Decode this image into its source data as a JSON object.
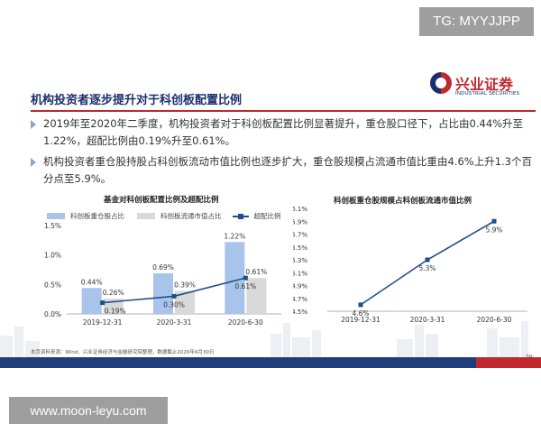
{
  "watermarks": {
    "top": "TG: MYYJJPP",
    "bottom": "www.moon-leyu.com"
  },
  "logo": {
    "name": "兴业证券",
    "sub": "INDUSTRIAL SECURITIES"
  },
  "slide_title": "机构投资者逐步提升对于科创板配置比例",
  "bullets": [
    "2019年至2020年二季度，机构投资者对于科创板配置比例显著提升，重仓股口径下，占比由0.44%升至1.22%，超配比例由0.19%升至0.61%。",
    "机构投资者重仓股持股占科创板流动市值比例也逐步扩大，重仓股规模占流通市值比重由4.6%上升1.3个百分点至5.9%。"
  ],
  "source_note": "本页资料来源：Wind，兴业证券经济与金融研究院整理，数据截止2020年6月30日",
  "page_number": "79",
  "colors": {
    "bar_holding": "#a9c4eb",
    "bar_market": "#d9d9d9",
    "line": "#1f4e8c",
    "title": "#1b2f6e",
    "accent": "#c0282d"
  },
  "chart_data": [
    {
      "type": "bar",
      "title": "基金对科创板配置比例及超配比例",
      "categories": [
        "2019-12-31",
        "2020-3-31",
        "2020-6-30"
      ],
      "series": [
        {
          "name": "科创板重仓股占比",
          "type": "bar",
          "values": [
            0.44,
            0.69,
            1.22
          ],
          "labels": [
            "0.44%",
            "0.69%",
            "1.22%"
          ]
        },
        {
          "name": "科创板流通市值占比",
          "type": "bar",
          "values": [
            0.26,
            0.39,
            0.61
          ],
          "labels": [
            "0.26%",
            "0.39%",
            "0.61%"
          ]
        },
        {
          "name": "超配比例",
          "type": "line",
          "values": [
            0.19,
            0.3,
            0.61
          ],
          "labels": [
            "0.19%",
            "0.30%",
            "0.61%"
          ]
        }
      ],
      "yticks": [
        "0.0%",
        "0.5%",
        "1.0%",
        "1.5%"
      ],
      "ylim": [
        0,
        1.5
      ],
      "legend": "top",
      "grid": false
    },
    {
      "type": "line",
      "title": "科创板重仓股规模占科创板流通市值比例",
      "categories": [
        "2019-12-31",
        "2020-3-31",
        "2020-6-30"
      ],
      "series": [
        {
          "name": "",
          "values": [
            4.6,
            5.3,
            5.9
          ],
          "labels": [
            "4.6%",
            "5.3%",
            "5.9%"
          ]
        }
      ],
      "yticks": [
        "4.5%",
        "4.7%",
        "4.9%",
        "5.1%",
        "5.3%",
        "5.5%",
        "5.7%",
        "5.9%",
        "6.1%"
      ],
      "ylim": [
        4.5,
        6.1
      ],
      "grid": false
    }
  ]
}
